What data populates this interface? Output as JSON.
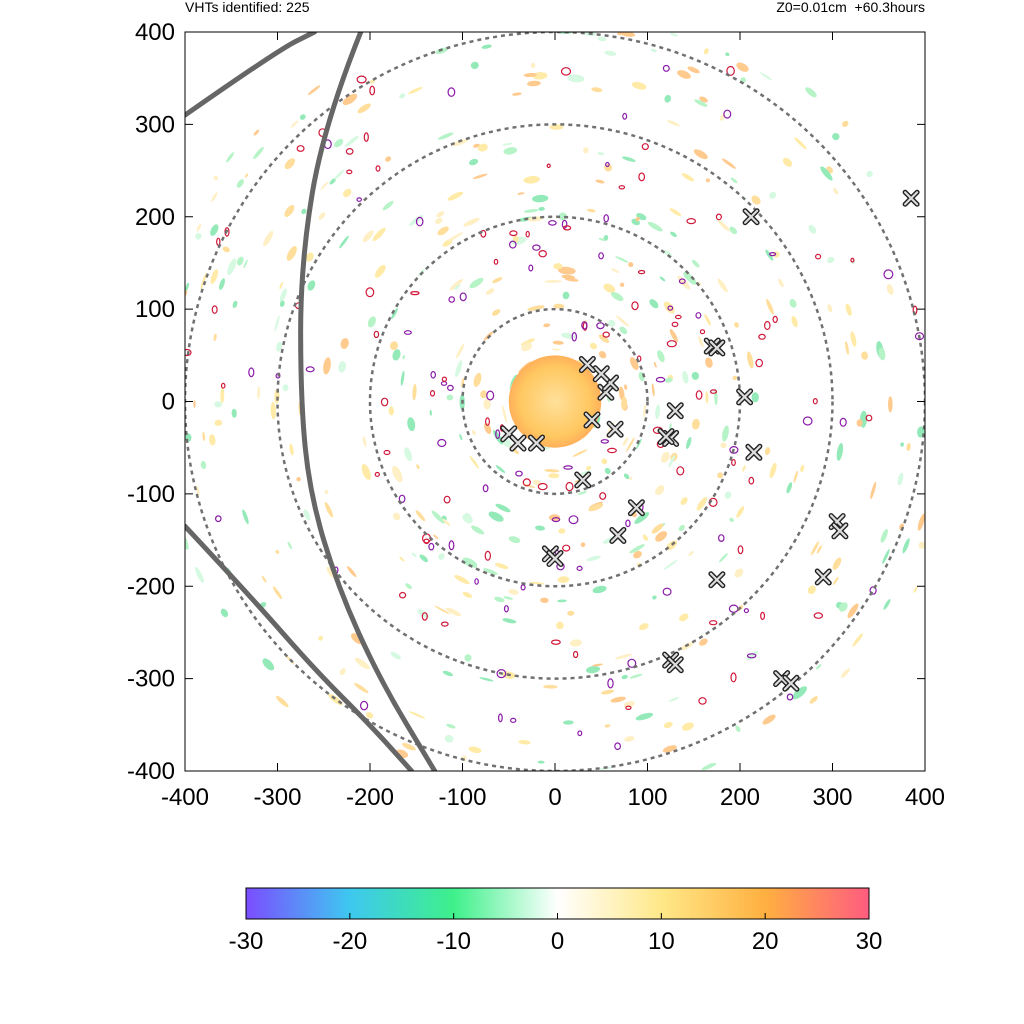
{
  "header": {
    "left": "VHTs identified: 225",
    "right": "Z0=0.01cm  +60.3hours"
  },
  "chart_data": {
    "type": "heatmap",
    "title": "",
    "xlabel": "",
    "ylabel": "",
    "xlim": [
      -400,
      400
    ],
    "ylim": [
      -400,
      400
    ],
    "x_ticks": [
      "-400",
      "-300",
      "-200",
      "-100",
      "0",
      "100",
      "200",
      "300",
      "400"
    ],
    "y_ticks": [
      "400",
      "300",
      "200",
      "100",
      "0",
      "-100",
      "-200",
      "-300",
      "-400"
    ],
    "range_rings_radius": [
      100,
      200,
      300,
      400
    ],
    "colorbar": {
      "min": -30,
      "max": 30,
      "ticks": [
        "-30",
        "-20",
        "-10",
        "0",
        "10",
        "20",
        "30"
      ],
      "stops": [
        "#7b4dff",
        "#3ec8f0",
        "#3ef08a",
        "#ffffff",
        "#ffe888",
        "#ffb040",
        "#ff5c80"
      ]
    },
    "central_feature": {
      "center": [
        0,
        0
      ],
      "radius": 50,
      "color": "#ffc861"
    },
    "vht_markers": [
      [
        -50,
        -35
      ],
      [
        -40,
        -45
      ],
      [
        -20,
        -45
      ],
      [
        30,
        -85
      ],
      [
        65,
        -30
      ],
      [
        40,
        -20
      ],
      [
        55,
        10
      ],
      [
        60,
        20
      ],
      [
        50,
        30
      ],
      [
        35,
        40
      ],
      [
        130,
        -10
      ],
      [
        125,
        -40
      ],
      [
        120,
        -38
      ],
      [
        88,
        -115
      ],
      [
        68,
        -145
      ],
      [
        -5,
        -165
      ],
      [
        0,
        -170
      ],
      [
        170,
        60
      ],
      [
        175,
        58
      ],
      [
        205,
        5
      ],
      [
        215,
        -55
      ],
      [
        175,
        -193
      ],
      [
        125,
        -280
      ],
      [
        130,
        -285
      ],
      [
        245,
        -300
      ],
      [
        255,
        -305
      ],
      [
        290,
        -190
      ],
      [
        305,
        -130
      ],
      [
        308,
        -140
      ],
      [
        385,
        220
      ],
      [
        212,
        200
      ]
    ],
    "track_arcs": [
      {
        "points": [
          [
            -400,
            310
          ],
          [
            -300,
            380
          ],
          [
            -260,
            400
          ]
        ]
      },
      {
        "points": [
          [
            -210,
            400
          ],
          [
            -250,
            300
          ],
          [
            -275,
            150
          ],
          [
            -275,
            0
          ],
          [
            -265,
            -100
          ],
          [
            -235,
            -200
          ],
          [
            -190,
            -300
          ],
          [
            -130,
            -400
          ]
        ]
      },
      {
        "points": [
          [
            -400,
            -135
          ],
          [
            -330,
            -210
          ],
          [
            -260,
            -290
          ],
          [
            -200,
            -350
          ],
          [
            -155,
            -400
          ]
        ]
      }
    ]
  }
}
